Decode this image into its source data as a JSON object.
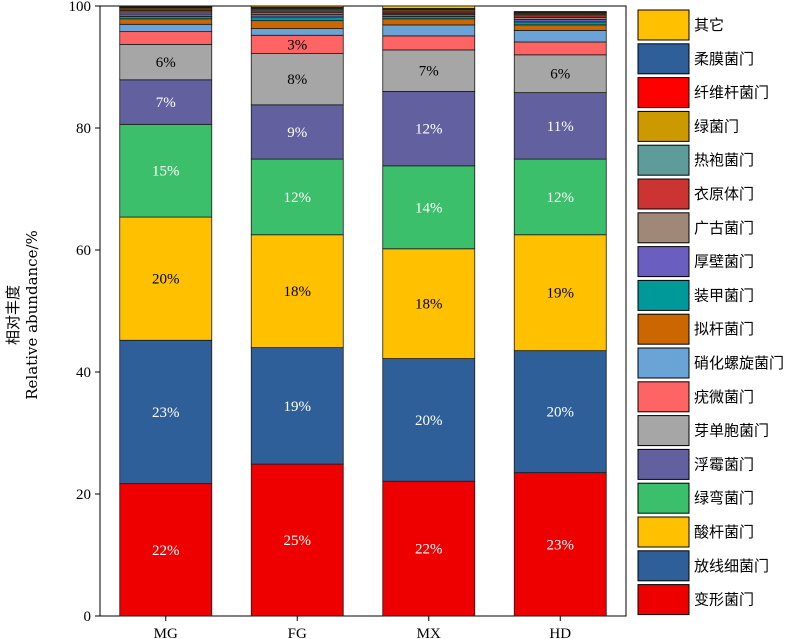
{
  "chart_data": {
    "type": "bar",
    "stacked": true,
    "categories": [
      "MG",
      "FG",
      "MX",
      "HD"
    ],
    "ylabel_cn": "相对丰度",
    "ylabel_en": "Relative abundance/%",
    "ylim": [
      0,
      100
    ],
    "yticks": [
      "0",
      "20",
      "40",
      "60",
      "80",
      "100"
    ],
    "legend_position": "right",
    "series": [
      {
        "name": "变形菌门",
        "color": "#ee0000",
        "values": [
          21.7,
          24.9,
          22.1,
          23.5
        ],
        "labels": [
          "22%",
          "25%",
          "22%",
          "23%"
        ]
      },
      {
        "name": "放线细菌门",
        "color": "#2f5f99",
        "values": [
          23.5,
          19.1,
          20.1,
          20.0
        ],
        "labels": [
          "23%",
          "19%",
          "20%",
          "20%"
        ]
      },
      {
        "name": "酸杆菌门",
        "color": "#ffc000",
        "values": [
          20.2,
          18.5,
          18.0,
          19.0
        ],
        "labels": [
          "20%",
          "18%",
          "18%",
          "19%"
        ]
      },
      {
        "name": "绿弯菌门",
        "color": "#3cbf6a",
        "values": [
          15.2,
          12.4,
          13.6,
          12.4
        ],
        "labels": [
          "15%",
          "12%",
          "14%",
          "12%"
        ]
      },
      {
        "name": "浮霉菌门",
        "color": "#62609e",
        "values": [
          7.3,
          8.9,
          12.2,
          10.9
        ],
        "labels": [
          "7%",
          "9%",
          "12%",
          "11%"
        ]
      },
      {
        "name": "芽单胞菌门",
        "color": "#a6a6a6",
        "values": [
          5.8,
          8.4,
          6.8,
          6.2
        ],
        "labels": [
          "6%",
          "8%",
          "7%",
          "6%"
        ]
      },
      {
        "name": "疣微菌门",
        "color": "#ff6464",
        "values": [
          2.1,
          3.0,
          2.3,
          2.1
        ],
        "labels": [
          "",
          "3%",
          "",
          ""
        ]
      },
      {
        "name": "硝化螺旋菌门",
        "color": "#6aa3d6",
        "values": [
          1.2,
          1.1,
          1.8,
          1.9
        ],
        "labels": [
          "",
          "",
          "",
          ""
        ]
      },
      {
        "name": "拟杆菌门",
        "color": "#cc6600",
        "values": [
          0.9,
          1.3,
          1.0,
          0.9
        ],
        "labels": [
          "",
          "",
          "",
          ""
        ]
      },
      {
        "name": "装甲菌门",
        "color": "#009999",
        "values": [
          0.4,
          0.6,
          0.4,
          0.5
        ],
        "labels": [
          "",
          "",
          "",
          ""
        ]
      },
      {
        "name": "厚壁菌门",
        "color": "#6a5fc1",
        "values": [
          0.4,
          0.4,
          0.3,
          0.4
        ],
        "labels": [
          "",
          "",
          "",
          ""
        ]
      },
      {
        "name": "广古菌门",
        "color": "#a08878",
        "values": [
          0.3,
          0.3,
          0.2,
          0.3
        ],
        "labels": [
          "",
          "",
          "",
          ""
        ]
      },
      {
        "name": "衣原体门",
        "color": "#cc3333",
        "values": [
          0.3,
          0.3,
          0.2,
          0.3
        ],
        "labels": [
          "",
          "",
          "",
          ""
        ]
      },
      {
        "name": "热袍菌门",
        "color": "#5e9c9a",
        "values": [
          0.2,
          0.2,
          0.2,
          0.2
        ],
        "labels": [
          "",
          "",
          "",
          ""
        ]
      },
      {
        "name": "绿菌门",
        "color": "#cc9900",
        "values": [
          0.2,
          0.2,
          0.2,
          0.2
        ],
        "labels": [
          "",
          "",
          "",
          ""
        ]
      },
      {
        "name": "纤维杆菌门",
        "color": "#ff0000",
        "values": [
          0.1,
          0.1,
          0.1,
          0.1
        ],
        "labels": [
          "",
          "",
          "",
          ""
        ]
      },
      {
        "name": "柔膜菌门",
        "color": "#2f5f99",
        "values": [
          0.1,
          0.1,
          0.1,
          0.1
        ],
        "labels": [
          "",
          "",
          "",
          ""
        ]
      },
      {
        "name": "其它",
        "color": "#ffc000",
        "values": [
          0.1,
          0.2,
          0.4,
          0.1
        ],
        "labels": [
          "",
          "",
          "",
          ""
        ]
      }
    ],
    "legend_order": [
      "其它",
      "柔膜菌门",
      "纤维杆菌门",
      "绿菌门",
      "热袍菌门",
      "衣原体门",
      "广古菌门",
      "厚壁菌门",
      "装甲菌门",
      "拟杆菌门",
      "硝化螺旋菌门",
      "疣微菌门",
      "芽单胞菌门",
      "浮霉菌门",
      "绿弯菌门",
      "酸杆菌门",
      "放线细菌门",
      "变形菌门"
    ],
    "segment_label_colors": {
      "light": "#ffffff",
      "dark": "#000000"
    }
  }
}
